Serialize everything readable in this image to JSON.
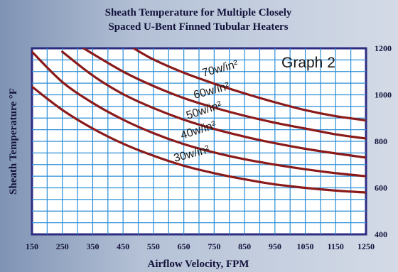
{
  "chart_data": {
    "type": "line",
    "title_lines": [
      "Sheath Temperature for Multiple Closely",
      "Spaced U-Bent Finned Tubular Heaters"
    ],
    "tag": "Graph 2",
    "xlabel": "Airflow Velocity, FPM",
    "ylabel": "Sheath Temperature °F",
    "xlim": [
      150,
      1250
    ],
    "ylim": [
      400,
      1200
    ],
    "x_ticks": [
      "150",
      "250",
      "350",
      "450",
      "550",
      "650",
      "750",
      "850",
      "950",
      "1050",
      "1150",
      "1250"
    ],
    "y_ticks": [
      "400",
      "600",
      "800",
      "1000",
      "1200"
    ],
    "grid": true,
    "line_color": "#8b1a1a",
    "grid_color": "#2d8fd6",
    "series": [
      {
        "label": "30w/in²",
        "x": [
          150,
          250,
          350,
          450,
          550,
          650,
          750,
          850,
          950,
          1050,
          1150,
          1250
        ],
        "y": [
          1035,
          935,
          855,
          790,
          738,
          695,
          663,
          637,
          615,
          600,
          588,
          580
        ]
      },
      {
        "label": "40w/in²",
        "x": [
          150,
          250,
          350,
          450,
          550,
          650,
          750,
          850,
          950,
          1050,
          1150,
          1250
        ],
        "y": [
          1185,
          1055,
          965,
          893,
          835,
          788,
          752,
          723,
          700,
          680,
          663,
          650
        ]
      },
      {
        "label": "50w/in²",
        "x": [
          250,
          350,
          450,
          550,
          650,
          750,
          850,
          950,
          1050,
          1150,
          1250
        ],
        "y": [
          1185,
          1083,
          1003,
          943,
          893,
          853,
          820,
          792,
          768,
          748,
          730
        ]
      },
      {
        "label": "60w/in²",
        "x": [
          320,
          450,
          550,
          650,
          750,
          850,
          950,
          1050,
          1150,
          1250
        ],
        "y": [
          1200,
          1100,
          1038,
          986,
          945,
          910,
          880,
          855,
          830,
          812
        ]
      },
      {
        "label": "70w/in²",
        "x": [
          485,
          550,
          650,
          750,
          850,
          950,
          1050,
          1150,
          1250
        ],
        "y": [
          1200,
          1152,
          1095,
          1048,
          1006,
          968,
          934,
          908,
          890
        ]
      }
    ]
  }
}
